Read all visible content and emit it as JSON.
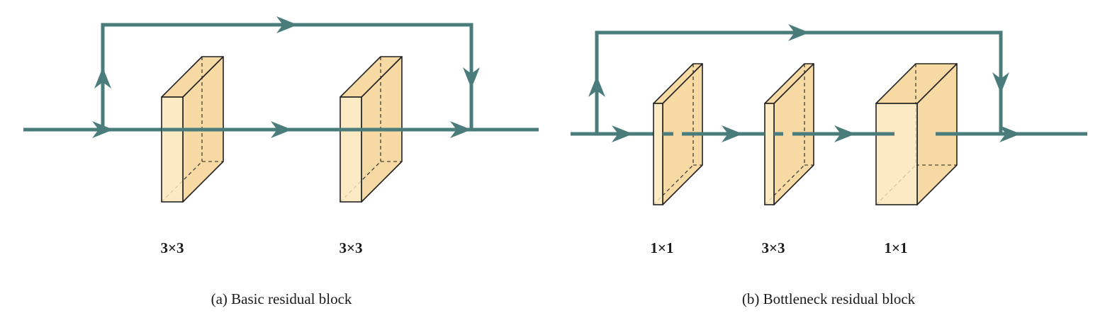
{
  "colors": {
    "line": "#4a7c7c",
    "block_face": "#fbe5b8",
    "block_side": "#f6d9a3",
    "block_edge": "#222222"
  },
  "left_panel": {
    "caption": "(a)  Basic residual block",
    "kernels": [
      "3×3",
      "3×3"
    ]
  },
  "right_panel": {
    "caption": "(b)  Bottleneck residual block",
    "kernels": [
      "1×1",
      "3×3",
      "1×1"
    ]
  }
}
